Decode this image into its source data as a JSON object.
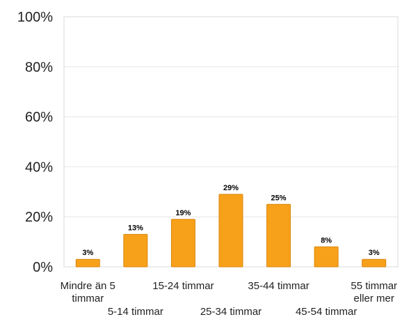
{
  "chart_data": {
    "type": "bar",
    "categories": [
      "Mindre än 5 timmar",
      "5-14 timmar",
      "15-24 timmar",
      "25-34 timmar",
      "35-44 timmar",
      "45-54 timmar",
      "55 timmar eller mer"
    ],
    "category_lines": [
      [
        "Mindre än 5",
        "timmar"
      ],
      [
        "5-14 timmar"
      ],
      [
        "15-24 timmar"
      ],
      [
        "25-34 timmar"
      ],
      [
        "35-44 timmar"
      ],
      [
        "45-54 timmar"
      ],
      [
        "55 timmar",
        "eller mer"
      ]
    ],
    "values": [
      3,
      13,
      19,
      29,
      25,
      8,
      3
    ],
    "value_labels": [
      "3%",
      "13%",
      "19%",
      "29%",
      "25%",
      "8%",
      "3%"
    ],
    "ylim": [
      0,
      100
    ],
    "yticks": [
      0,
      20,
      40,
      60,
      80,
      100
    ],
    "ytick_labels": [
      "0%",
      "20%",
      "40%",
      "60%",
      "80%",
      "100%"
    ],
    "title": "",
    "xlabel": "",
    "ylabel": "",
    "grid": true,
    "legend": "none",
    "colors": {
      "bar_fill": "#F7A11A",
      "bar_stroke": "#D9860C"
    }
  }
}
